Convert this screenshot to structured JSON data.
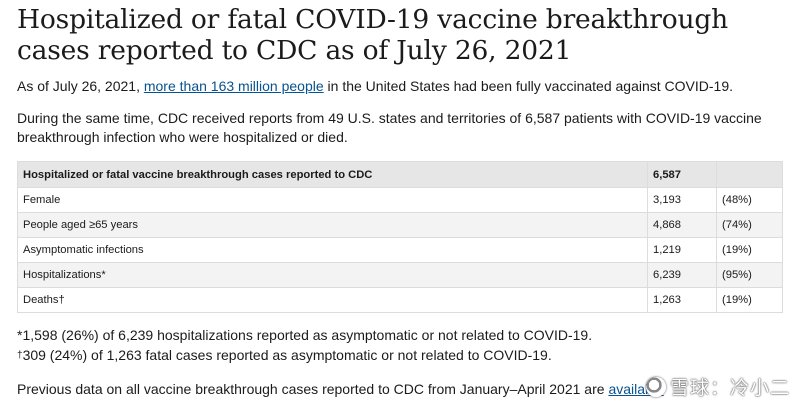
{
  "title": "Hospitalized or fatal COVID-19 vaccine breakthrough cases reported to CDC as of July 26, 2021",
  "intro": {
    "before": "As of July 26, 2021, ",
    "link": "more than 163 million people",
    "after": " in the United States had been fully vaccinated against COVID-19."
  },
  "paragraph2": "During the same time, CDC received reports from 49 U.S. states and territories of 6,587 patients with COVID-19 vaccine breakthrough infection who were hospitalized or died.",
  "table": {
    "header": {
      "label": "Hospitalized or fatal vaccine breakthrough cases reported to CDC",
      "value": "6,587",
      "pct": ""
    },
    "rows": [
      {
        "label": "Female",
        "value": "3,193",
        "pct": "(48%)"
      },
      {
        "label": "People aged ≥65 years",
        "value": "4,868",
        "pct": "(74%)"
      },
      {
        "label": "Asymptomatic infections",
        "value": "1,219",
        "pct": "(19%)"
      },
      {
        "label": "Hospitalizations*",
        "value": "6,239",
        "pct": "(95%)"
      },
      {
        "label": "Deaths†",
        "value": "1,263",
        "pct": "(19%)"
      }
    ]
  },
  "footnotes": {
    "note1": "*1,598 (26%) of 6,239 hospitalizations reported as asymptomatic or not related to COVID-19.",
    "note2_mark": "†",
    "note2": "309 (24%) of 1,263 fatal cases reported as asymptomatic or not related to COVID-19."
  },
  "previous": {
    "before": "Previous data on all vaccine breakthrough cases reported to CDC from January–April 2021 are ",
    "link": "available"
  },
  "watermark": "雪球：冷小二"
}
